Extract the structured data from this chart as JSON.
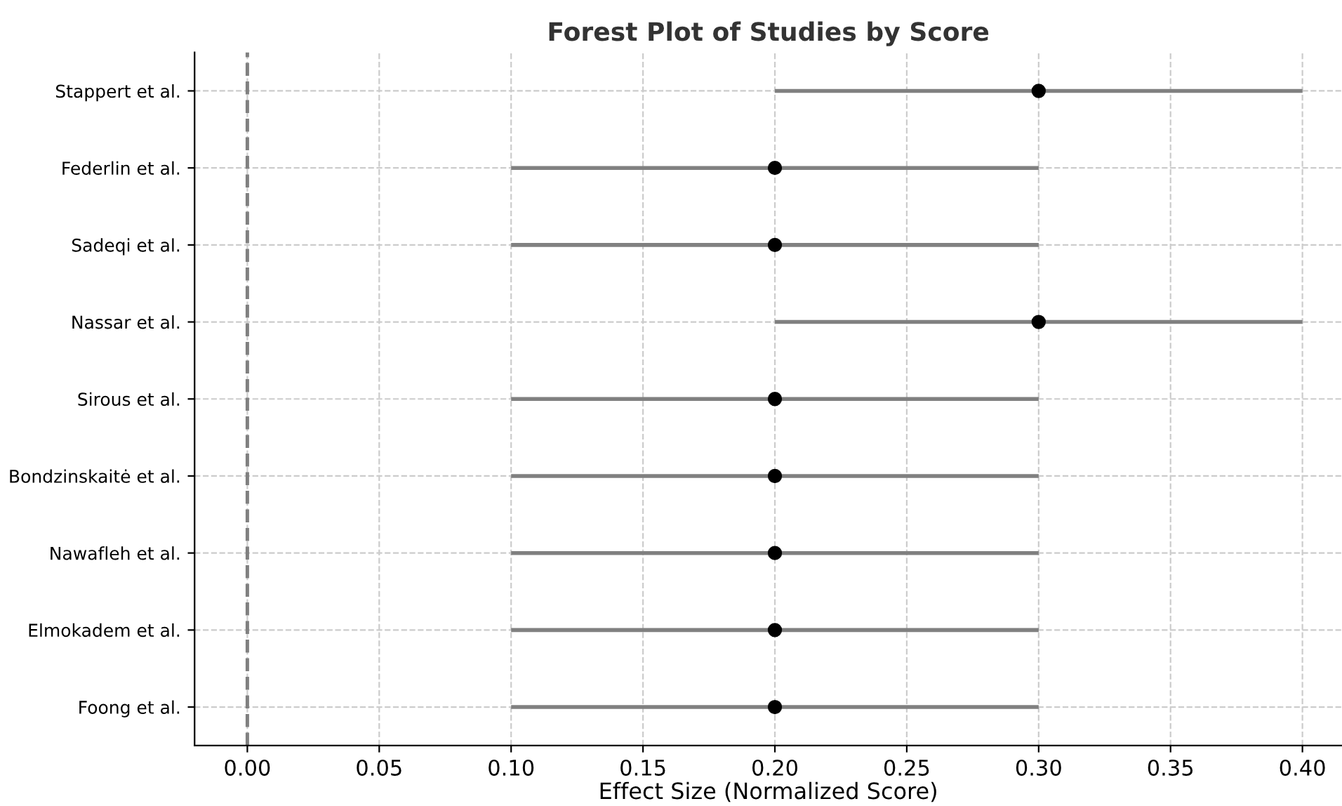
{
  "chart_data": {
    "type": "scatter",
    "orientation": "horizontal",
    "title": "Forest Plot of Studies by Score",
    "xlabel": "Effect Size (Normalized Score)",
    "categories": [
      "Stappert et al.",
      "Federlin et al.",
      "Sadeqi et al.",
      "Nassar et al.",
      "Sirous et al.",
      "Bondzinskaitė et al.",
      "Nawafleh et al.",
      "Elmokadem et al.",
      "Foong et al."
    ],
    "series": [
      {
        "color": "#000000",
        "values": [
          0.3,
          0.2,
          0.2,
          0.3,
          0.2,
          0.2,
          0.2,
          0.2,
          0.2
        ],
        "errors": [
          0.1,
          0.1,
          0.1,
          0.1,
          0.1,
          0.1,
          0.1,
          0.1,
          0.1
        ]
      }
    ],
    "xlim": [
      -0.02,
      0.415
    ],
    "xticks": [
      {
        "value": 0,
        "label": "0.00"
      },
      {
        "value": 0.05,
        "label": "0.05"
      },
      {
        "value": 0.1,
        "label": "0.10"
      },
      {
        "value": 0.15,
        "label": "0.15"
      },
      {
        "value": 0.2,
        "label": "0.20"
      },
      {
        "value": 0.25,
        "label": "0.25"
      },
      {
        "value": 0.3,
        "label": "0.30"
      },
      {
        "value": 0.35,
        "label": "0.35"
      },
      {
        "value": 0.4,
        "label": "0.40"
      }
    ],
    "ref_lines": [
      {
        "axis": "x",
        "value": 0,
        "label": null,
        "color": "#808080",
        "line_style": "dashed"
      }
    ],
    "grid": true,
    "marker": "circle",
    "legend": false
  }
}
